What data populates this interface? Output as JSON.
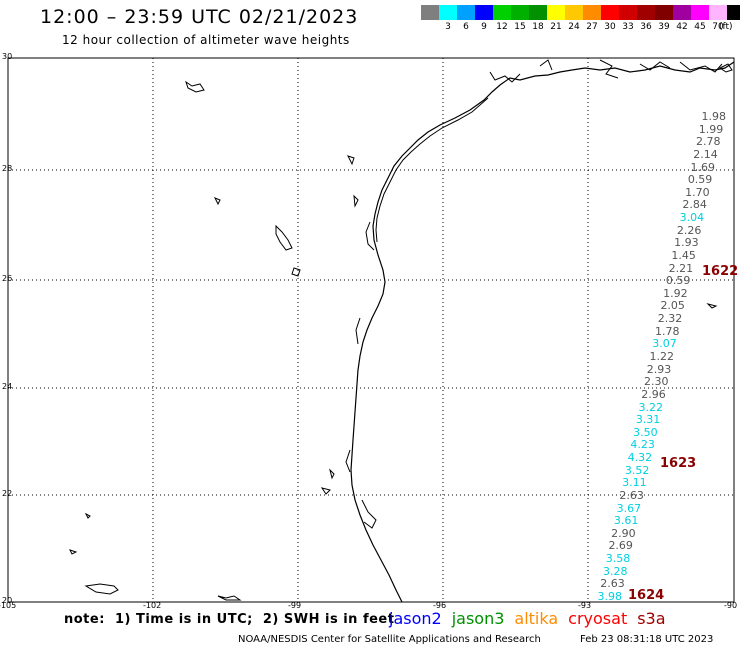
{
  "header": {
    "title": "12:00 – 23:59 UTC 02/21/2023",
    "subtitle": "12 hour collection of altimeter wave heights"
  },
  "scale": {
    "colors": [
      "#7f7f7f",
      "#00ffff",
      "#00a0ff",
      "#0000ff",
      "#00d000",
      "#00b000",
      "#009000",
      "#ffff00",
      "#ffc800",
      "#ff8c00",
      "#ff0000",
      "#d00000",
      "#a00000",
      "#800000",
      "#a000a0",
      "#ff00ff",
      "#ffb4ff",
      "#000000"
    ],
    "labels": [
      "",
      "3",
      "6",
      "9",
      "12",
      "15",
      "18",
      "21",
      "24",
      "27",
      "30",
      "33",
      "36",
      "39",
      "42",
      "45",
      "70",
      ""
    ],
    "unit": "(ft)"
  },
  "map": {
    "lat_labels": [
      "30",
      "28",
      "26",
      "24",
      "22",
      "20"
    ],
    "lon_labels": [
      "-105",
      "-102",
      "-99",
      "-96",
      "-93",
      "-90"
    ]
  },
  "wave_values": [
    {
      "v": "1.98",
      "c": "#555555"
    },
    {
      "v": "1.99",
      "c": "#555555"
    },
    {
      "v": "2.78",
      "c": "#555555"
    },
    {
      "v": "2.14",
      "c": "#555555"
    },
    {
      "v": "1.69",
      "c": "#555555"
    },
    {
      "v": "0.59",
      "c": "#555555"
    },
    {
      "v": "1.70",
      "c": "#555555"
    },
    {
      "v": "2.84",
      "c": "#555555"
    },
    {
      "v": "3.04",
      "c": "#00d0e0"
    },
    {
      "v": "2.26",
      "c": "#555555"
    },
    {
      "v": "1.93",
      "c": "#555555"
    },
    {
      "v": "1.45",
      "c": "#555555"
    },
    {
      "v": "2.21",
      "c": "#555555"
    },
    {
      "v": "0.59",
      "c": "#555555"
    },
    {
      "v": "1.92",
      "c": "#555555"
    },
    {
      "v": "2.05",
      "c": "#555555"
    },
    {
      "v": "2.32",
      "c": "#555555"
    },
    {
      "v": "1.78",
      "c": "#555555"
    },
    {
      "v": "3.07",
      "c": "#00d0e0"
    },
    {
      "v": "1.22",
      "c": "#555555"
    },
    {
      "v": "2.93",
      "c": "#555555"
    },
    {
      "v": "2.30",
      "c": "#555555"
    },
    {
      "v": "2.96",
      "c": "#555555"
    },
    {
      "v": "3.22",
      "c": "#00d0e0"
    },
    {
      "v": "3.31",
      "c": "#00d0e0"
    },
    {
      "v": "3.50",
      "c": "#00d0e0"
    },
    {
      "v": "4.23",
      "c": "#00d0e0"
    },
    {
      "v": "4.32",
      "c": "#00d0e0"
    },
    {
      "v": "3.52",
      "c": "#00d0e0"
    },
    {
      "v": "3.11",
      "c": "#00d0e0"
    },
    {
      "v": "2.63",
      "c": "#555555"
    },
    {
      "v": "3.67",
      "c": "#00d0e0"
    },
    {
      "v": "3.61",
      "c": "#00d0e0"
    },
    {
      "v": "2.90",
      "c": "#555555"
    },
    {
      "v": "2.69",
      "c": "#555555"
    },
    {
      "v": "3.58",
      "c": "#00d0e0"
    },
    {
      "v": "3.28",
      "c": "#00d0e0"
    },
    {
      "v": "2.63",
      "c": "#555555"
    },
    {
      "v": "3.98",
      "c": "#00d0e0"
    }
  ],
  "passes": [
    "1622",
    "1623",
    "1624"
  ],
  "footer": {
    "note": "note:  1) Time is in UTC;  2) SWH is in feet",
    "satellites": [
      {
        "name": "jason2",
        "color": "#0000ff"
      },
      {
        "name": "jason3",
        "color": "#009000"
      },
      {
        "name": "altika",
        "color": "#ff8c00"
      },
      {
        "name": "cryosat",
        "color": "#ff0000"
      },
      {
        "name": "s3a",
        "color": "#a00000"
      }
    ],
    "credit": "NOAA/NESDIS Center for Satellite Applications and Research",
    "timestamp": "Feb 23 08:31:18 UTC 2023"
  }
}
